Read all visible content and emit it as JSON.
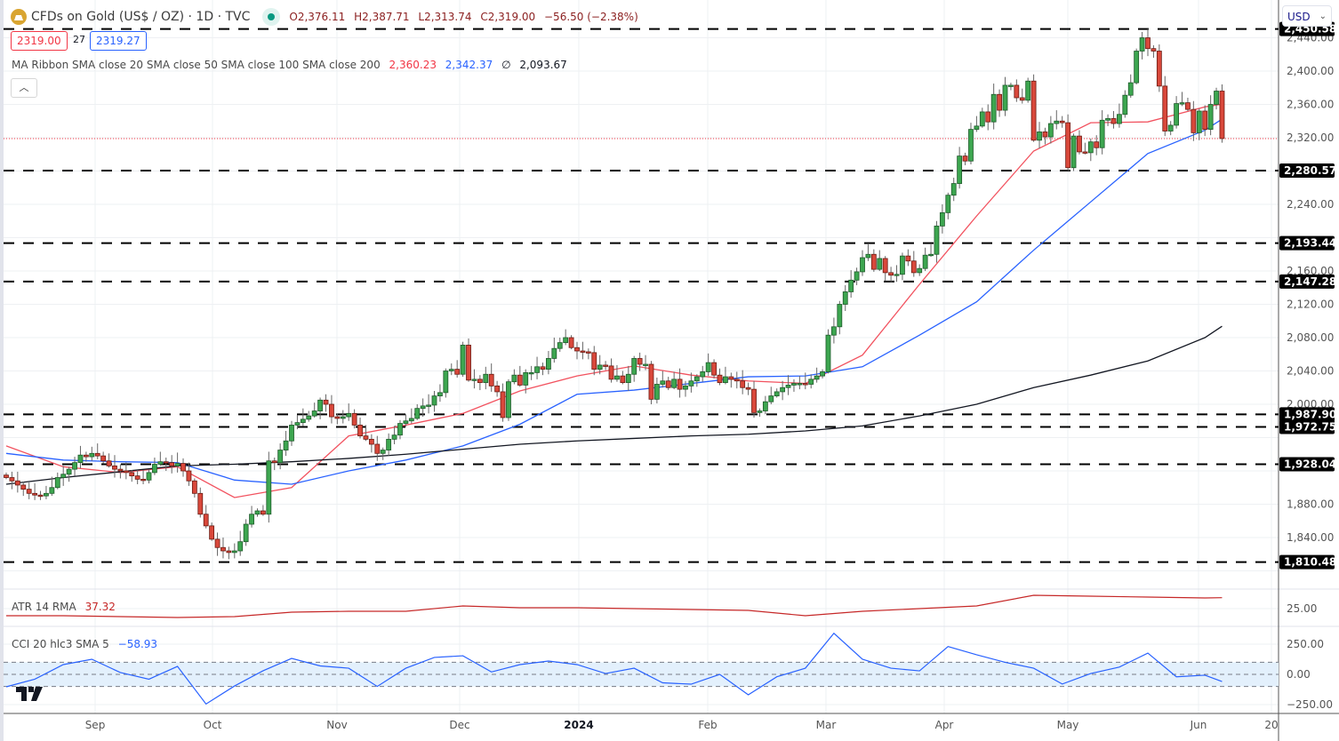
{
  "header": {
    "symbol_title": "CFDs on Gold (US$ / OZ) · 1D · TVC",
    "open": "O2,376.11",
    "high": "H2,387.71",
    "low": "L2,313.74",
    "close": "C2,319.00",
    "change": "−56.50 (−2.38%)",
    "bid": "2319.00",
    "spread": "27",
    "ask": "2319.27",
    "collapse_icon": "chevron-up-icon",
    "currency": "USD"
  },
  "indicators": {
    "ma_ribbon_label": "MA Ribbon SMA close 20 SMA close 50 SMA close 100 SMA close 200",
    "ma20_value": "2,360.23",
    "ma50_value": "2,342.37",
    "ma100_value": "∅",
    "ma200_value": "2,093.67",
    "atr_label": "ATR 14 RMA",
    "atr_value": "37.32",
    "cci_label": "CCI 20 hlc3 SMA 5",
    "cci_value": "−58.93"
  },
  "colors": {
    "up": "#3da650",
    "down": "#d9483b",
    "ma20": "#f2525f",
    "ma50": "#2962ff",
    "ma200": "#131722",
    "atr": "#c62828",
    "cci": "#2962ff"
  },
  "chart_data": {
    "type": "candlestick",
    "ylim": [
      1790,
      2460
    ],
    "y_ticks": [
      "2,440.00",
      "2,400.00",
      "2,360.00",
      "2,320.00",
      "2,240.00",
      "2,160.00",
      "2,120.00",
      "2,080.00",
      "2,040.00",
      "2,000.00",
      "1,880.00",
      "1,840.00"
    ],
    "x_ticks": [
      "Sep",
      "Oct",
      "Nov",
      "Dec",
      "2024",
      "Feb",
      "Mar",
      "Apr",
      "May",
      "Jun",
      "20"
    ],
    "closes": [
      1912,
      1908,
      1903,
      1898,
      1893,
      1891,
      1890,
      1893,
      1900,
      1912,
      1916,
      1922,
      1930,
      1939,
      1937,
      1941,
      1938,
      1932,
      1926,
      1922,
      1920,
      1918,
      1914,
      1910,
      1909,
      1918,
      1928,
      1931,
      1930,
      1926,
      1929,
      1920,
      1908,
      1893,
      1868,
      1854,
      1838,
      1828,
      1824,
      1822,
      1824,
      1835,
      1856,
      1868,
      1872,
      1868,
      1932,
      1930,
      1945,
      1956,
      1975,
      1978,
      1982,
      1986,
      1992,
      2005,
      2000,
      1985,
      1983,
      1985,
      1989,
      1975,
      1962,
      1958,
      1952,
      1941,
      1945,
      1958,
      1963,
      1977,
      1980,
      1983,
      1995,
      1998,
      1999,
      2010,
      2014,
      2040,
      2042,
      2036,
      2071,
      2029,
      2030,
      2026,
      2036,
      2022,
      2015,
      1984,
      2027,
      2035,
      2023,
      2038,
      2038,
      2045,
      2042,
      2055,
      2067,
      2074,
      2080,
      2068,
      2064,
      2063,
      2062,
      2042,
      2047,
      2046,
      2030,
      2034,
      2026,
      2036,
      2055,
      2048,
      2048,
      2006,
      2024,
      2028,
      2020,
      2030,
      2018,
      2022,
      2028,
      2033,
      2039,
      2050,
      2035,
      2026,
      2033,
      2030,
      2028,
      2020,
      2018,
      1990,
      1992,
      2003,
      2010,
      2015,
      2020,
      2023,
      2025,
      2025,
      2024,
      2030,
      2034,
      2039,
      2083,
      2093,
      2120,
      2135,
      2149,
      2159,
      2176,
      2180,
      2162,
      2175,
      2158,
      2155,
      2156,
      2178,
      2172,
      2158,
      2163,
      2179,
      2180,
      2214,
      2230,
      2251,
      2265,
      2298,
      2292,
      2330,
      2334,
      2351,
      2339,
      2372,
      2353,
      2383,
      2383,
      2368,
      2365,
      2388,
      2317,
      2327,
      2321,
      2337,
      2340,
      2338,
      2284,
      2322,
      2303,
      2302,
      2315,
      2308,
      2341,
      2343,
      2337,
      2348,
      2371,
      2386,
      2424,
      2440,
      2427,
      2424,
      2382,
      2328,
      2335,
      2361,
      2362,
      2354,
      2326,
      2352,
      2330,
      2360,
      2376,
      2319
    ],
    "last_price": 2319.0,
    "levels": [
      {
        "value": 2450.58,
        "label": "2,450.58"
      },
      {
        "value": 2280.57,
        "label": "2,280.57"
      },
      {
        "value": 2193.44,
        "label": "2,193.44"
      },
      {
        "value": 2147.28,
        "label": "2,147.28"
      },
      {
        "value": 1987.9,
        "label": "1,987.90"
      },
      {
        "value": 1972.75,
        "label": "1,972.75"
      },
      {
        "value": 1928.04,
        "label": "1,928.04"
      },
      {
        "value": 1810.48,
        "label": "1,810.48"
      }
    ],
    "series": [
      {
        "name": "SMA close 20",
        "values": [
          1950,
          1925,
          1918,
          1925,
          1888,
          1900,
          1962,
          1975,
          1989,
          2016,
          2034,
          2046,
          2035,
          2028,
          2025,
          2059,
          2144,
          2226,
          2304,
          2338,
          2339,
          2357,
          2360.23
        ]
      },
      {
        "name": "SMA close 50",
        "values": [
          1941,
          1933,
          1931,
          1930,
          1909,
          1904,
          1920,
          1933,
          1950,
          1976,
          2012,
          2017,
          2025,
          2033,
          2034,
          2045,
          2083,
          2123,
          2185,
          2243,
          2301,
          2329,
          2342.37
        ]
      },
      {
        "name": "SMA close 200",
        "values": [
          1904,
          1912,
          1919,
          1926,
          1928,
          1931,
          1935,
          1940,
          1946,
          1952,
          1956,
          1959,
          1962,
          1964,
          1968,
          1974,
          1986,
          2000,
          2020,
          2035,
          2052,
          2080,
          2093.67
        ]
      }
    ],
    "atr": {
      "tick": "25.00",
      "values": [
        17,
        17,
        16,
        15,
        16,
        21,
        22,
        22,
        28,
        26,
        26,
        25,
        24,
        23,
        17,
        22,
        25,
        28,
        40,
        39,
        38,
        37,
        37.32
      ]
    },
    "cci": {
      "ticks": [
        "250.00",
        "0.00",
        "−250.00"
      ],
      "band": [
        -100,
        100
      ],
      "values": [
        -103,
        -40,
        81,
        125,
        15,
        -40,
        66,
        -245,
        -96,
        30,
        132,
        70,
        51,
        -100,
        51,
        140,
        154,
        20,
        81,
        110,
        81,
        7,
        51,
        -70,
        -81,
        0,
        -169,
        -20,
        51,
        340,
        125,
        51,
        29,
        230,
        162,
        100,
        51,
        -80,
        7,
        60,
        176,
        -20,
        -7,
        -58.93
      ]
    }
  }
}
